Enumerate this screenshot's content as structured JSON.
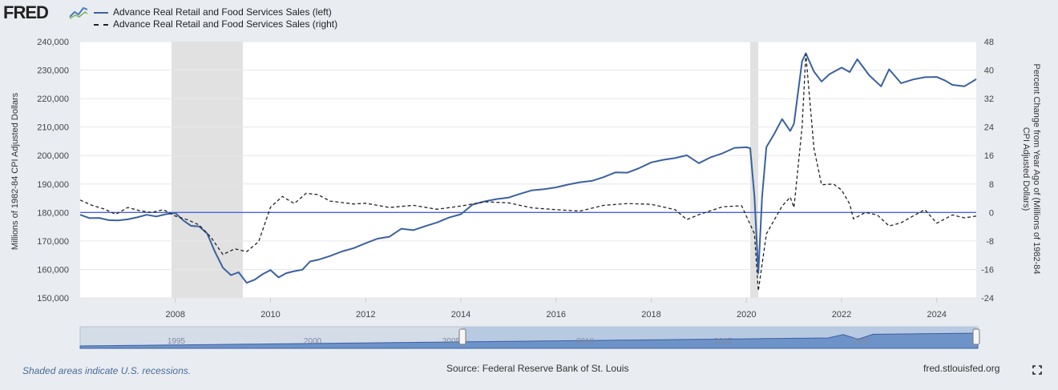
{
  "brand": {
    "logo_text": "FRED",
    "logo_mark": "fred-line-chart-icon"
  },
  "legend": [
    {
      "label": "Advance Real Retail and Food Services Sales (left)",
      "style": "solid",
      "color": "#3a61a0"
    },
    {
      "label": "Advance Real Retail and Food Services Sales (right)",
      "style": "dashed",
      "color": "#222222"
    }
  ],
  "footer": {
    "recession_note": "Shaded areas indicate U.S. recessions.",
    "source": "Source: Federal Reserve Bank of St. Louis",
    "url": "fred.stlouisfed.org",
    "fullscreen_icon": "fullscreen-icon"
  },
  "navigator": {
    "labels": [
      "1995",
      "2000",
      "2005",
      "2010",
      "2015",
      "2020"
    ]
  },
  "chart_data": {
    "type": "line",
    "y_left_label": "Millions of 1982-84 CPI Adjusted Dollars",
    "y_right_label": "Percent Change from Year Ago of (Millions of 1982-84 CPI Adjusted Dollars)",
    "x_ticks": [
      "2008",
      "2010",
      "2012",
      "2014",
      "2016",
      "2018",
      "2020",
      "2022",
      "2024"
    ],
    "y_left_ticks": [
      "150,000",
      "160,000",
      "170,000",
      "180,000",
      "190,000",
      "200,000",
      "210,000",
      "220,000",
      "230,000",
      "240,000"
    ],
    "y_right_ticks": [
      "-24",
      "-16",
      "-8",
      "0",
      "8",
      "16",
      "24",
      "32",
      "40",
      "48"
    ],
    "x_range": [
      2006.0,
      2024.83
    ],
    "y_left_range": [
      150000,
      240000
    ],
    "y_right_range": [
      -24,
      48
    ],
    "grid": true,
    "legend_position": "top-left",
    "recessions": [
      [
        2007.92,
        2009.42
      ],
      [
        2020.08,
        2020.25
      ]
    ],
    "zero_line_color": "#4a63e0",
    "series": [
      {
        "name": "Advance Real Retail and Food Services Sales (left)",
        "axis": "left",
        "color": "#3a61a0",
        "style": "solid",
        "points": [
          [
            2006.0,
            179200
          ],
          [
            2006.2,
            178000
          ],
          [
            2006.4,
            178100
          ],
          [
            2006.6,
            177300
          ],
          [
            2006.8,
            177200
          ],
          [
            2007.0,
            177600
          ],
          [
            2007.2,
            178300
          ],
          [
            2007.4,
            179200
          ],
          [
            2007.6,
            178600
          ],
          [
            2007.8,
            179400
          ],
          [
            2008.0,
            179800
          ],
          [
            2008.17,
            177200
          ],
          [
            2008.33,
            175300
          ],
          [
            2008.5,
            175100
          ],
          [
            2008.67,
            172600
          ],
          [
            2008.83,
            166300
          ],
          [
            2009.0,
            160600
          ],
          [
            2009.17,
            158000
          ],
          [
            2009.33,
            159000
          ],
          [
            2009.5,
            155300
          ],
          [
            2009.67,
            156400
          ],
          [
            2009.83,
            158300
          ],
          [
            2010.0,
            159800
          ],
          [
            2010.17,
            157200
          ],
          [
            2010.33,
            158700
          ],
          [
            2010.5,
            159400
          ],
          [
            2010.67,
            159900
          ],
          [
            2010.83,
            162800
          ],
          [
            2011.0,
            163400
          ],
          [
            2011.25,
            164700
          ],
          [
            2011.5,
            166300
          ],
          [
            2011.75,
            167500
          ],
          [
            2012.0,
            169200
          ],
          [
            2012.25,
            170800
          ],
          [
            2012.5,
            171500
          ],
          [
            2012.75,
            174300
          ],
          [
            2013.0,
            173800
          ],
          [
            2013.25,
            175200
          ],
          [
            2013.5,
            176500
          ],
          [
            2013.75,
            178200
          ],
          [
            2014.0,
            179400
          ],
          [
            2014.25,
            182800
          ],
          [
            2014.5,
            183900
          ],
          [
            2014.75,
            184700
          ],
          [
            2015.0,
            185200
          ],
          [
            2015.25,
            186600
          ],
          [
            2015.5,
            187800
          ],
          [
            2015.75,
            188200
          ],
          [
            2016.0,
            188800
          ],
          [
            2016.25,
            189800
          ],
          [
            2016.5,
            190600
          ],
          [
            2016.75,
            191100
          ],
          [
            2017.0,
            192400
          ],
          [
            2017.25,
            194100
          ],
          [
            2017.5,
            194000
          ],
          [
            2017.75,
            195600
          ],
          [
            2018.0,
            197600
          ],
          [
            2018.25,
            198500
          ],
          [
            2018.5,
            199100
          ],
          [
            2018.75,
            200100
          ],
          [
            2019.0,
            197300
          ],
          [
            2019.25,
            199400
          ],
          [
            2019.5,
            200800
          ],
          [
            2019.75,
            202700
          ],
          [
            2020.0,
            202900
          ],
          [
            2020.08,
            202600
          ],
          [
            2020.17,
            185500
          ],
          [
            2020.25,
            158600
          ],
          [
            2020.33,
            185500
          ],
          [
            2020.42,
            203000
          ],
          [
            2020.58,
            207500
          ],
          [
            2020.75,
            212800
          ],
          [
            2020.92,
            208600
          ],
          [
            2021.0,
            211200
          ],
          [
            2021.17,
            233100
          ],
          [
            2021.25,
            235900
          ],
          [
            2021.42,
            229500
          ],
          [
            2021.58,
            226000
          ],
          [
            2021.75,
            228600
          ],
          [
            2022.0,
            230900
          ],
          [
            2022.17,
            229300
          ],
          [
            2022.33,
            233800
          ],
          [
            2022.58,
            228200
          ],
          [
            2022.83,
            224300
          ],
          [
            2023.0,
            230300
          ],
          [
            2023.25,
            225400
          ],
          [
            2023.5,
            226700
          ],
          [
            2023.75,
            227500
          ],
          [
            2024.0,
            227600
          ],
          [
            2024.17,
            226400
          ],
          [
            2024.33,
            224800
          ],
          [
            2024.58,
            224300
          ],
          [
            2024.83,
            226800
          ]
        ]
      },
      {
        "name": "Advance Real Retail and Food Services Sales (right)",
        "axis": "right",
        "color": "#222222",
        "style": "dashed",
        "points": [
          [
            2006.0,
            3.5
          ],
          [
            2006.25,
            2.0
          ],
          [
            2006.5,
            1.0
          ],
          [
            2006.75,
            -0.5
          ],
          [
            2007.0,
            1.4
          ],
          [
            2007.25,
            0.5
          ],
          [
            2007.5,
            0.0
          ],
          [
            2007.75,
            0.8
          ],
          [
            2008.0,
            -1.0
          ],
          [
            2008.25,
            -2.0
          ],
          [
            2008.5,
            -3.5
          ],
          [
            2008.75,
            -7.0
          ],
          [
            2009.0,
            -11.8
          ],
          [
            2009.25,
            -10.2
          ],
          [
            2009.5,
            -11.0
          ],
          [
            2009.75,
            -8.2
          ],
          [
            2010.0,
            1.5
          ],
          [
            2010.25,
            4.5
          ],
          [
            2010.5,
            2.5
          ],
          [
            2010.75,
            5.4
          ],
          [
            2011.0,
            5.0
          ],
          [
            2011.25,
            3.2
          ],
          [
            2011.5,
            2.8
          ],
          [
            2011.75,
            2.4
          ],
          [
            2012.0,
            2.6
          ],
          [
            2012.5,
            1.4
          ],
          [
            2013.0,
            2.0
          ],
          [
            2013.5,
            0.9
          ],
          [
            2014.0,
            1.8
          ],
          [
            2014.5,
            3.0
          ],
          [
            2015.0,
            2.7
          ],
          [
            2015.5,
            1.3
          ],
          [
            2016.0,
            0.8
          ],
          [
            2016.5,
            0.4
          ],
          [
            2017.0,
            2.0
          ],
          [
            2017.5,
            2.5
          ],
          [
            2018.0,
            2.3
          ],
          [
            2018.5,
            0.8
          ],
          [
            2018.75,
            -2.0
          ],
          [
            2019.0,
            -0.6
          ],
          [
            2019.5,
            1.6
          ],
          [
            2019.9,
            1.9
          ],
          [
            2020.17,
            -6.0
          ],
          [
            2020.25,
            -22.0
          ],
          [
            2020.42,
            -6.0
          ],
          [
            2020.75,
            1.8
          ],
          [
            2020.92,
            4.3
          ],
          [
            2021.0,
            1.4
          ],
          [
            2021.17,
            24.0
          ],
          [
            2021.25,
            44.5
          ],
          [
            2021.42,
            18.0
          ],
          [
            2021.58,
            7.8
          ],
          [
            2021.83,
            8.0
          ],
          [
            2022.0,
            6.3
          ],
          [
            2022.17,
            2.4
          ],
          [
            2022.25,
            -1.8
          ],
          [
            2022.5,
            0.0
          ],
          [
            2022.75,
            -0.7
          ],
          [
            2023.0,
            -3.8
          ],
          [
            2023.25,
            -2.9
          ],
          [
            2023.5,
            -1.0
          ],
          [
            2023.75,
            0.8
          ],
          [
            2024.0,
            -3.0
          ],
          [
            2024.33,
            -0.7
          ],
          [
            2024.58,
            -1.5
          ],
          [
            2024.83,
            -1.0
          ]
        ]
      }
    ]
  }
}
